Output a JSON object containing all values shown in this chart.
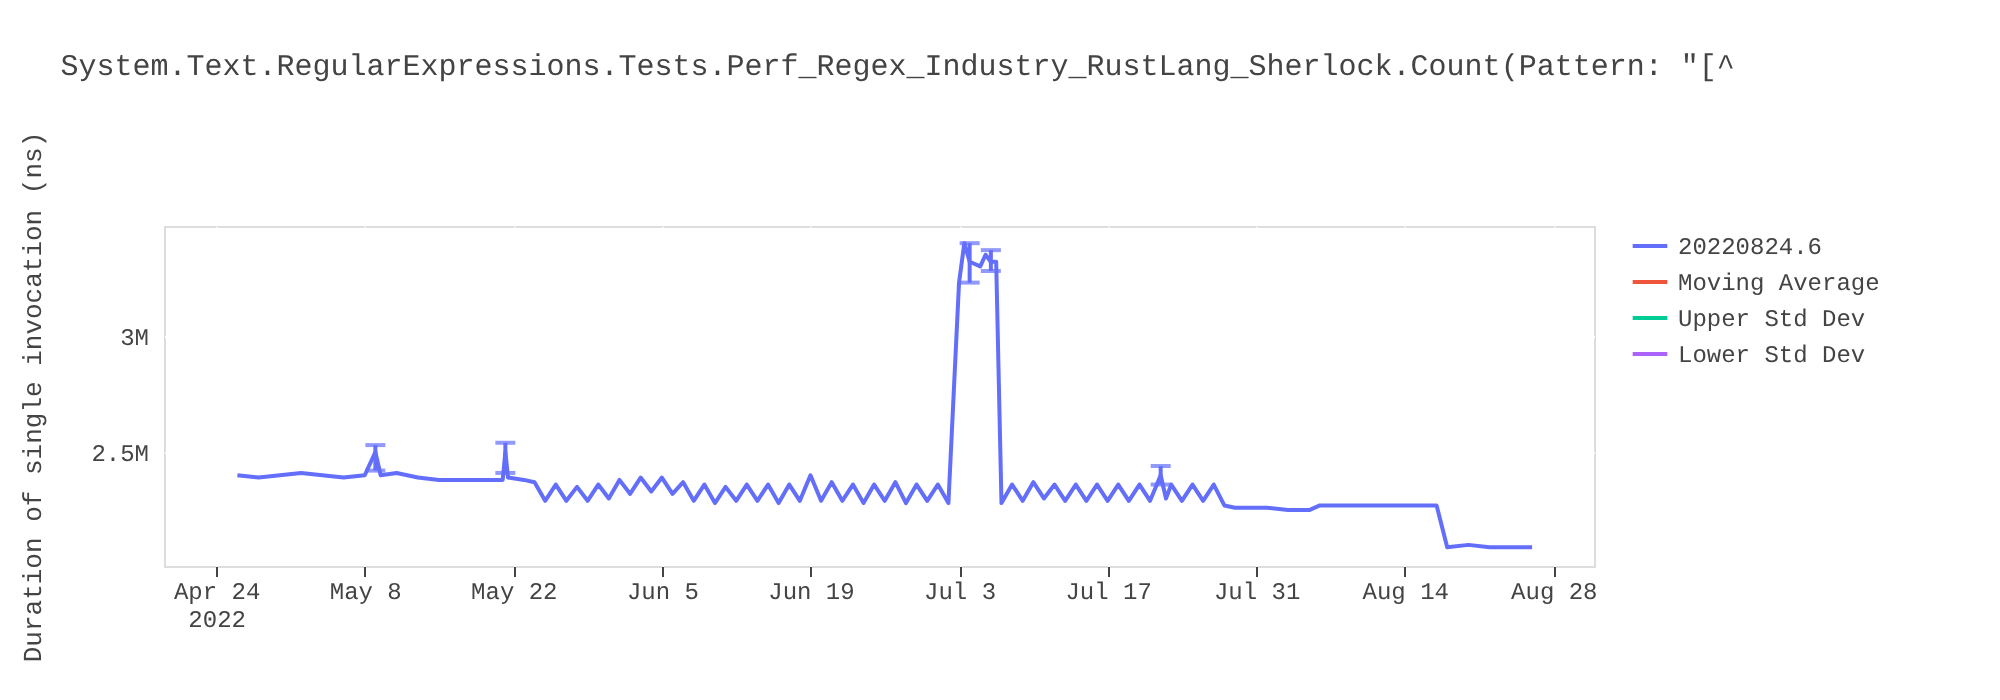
{
  "chart_data": {
    "type": "line",
    "title": "System.Text.RegularExpressions.Tests.Perf_Regex_Industry_RustLang_Sherlock.Count(Pattern: \"[^",
    "ylabel": "Duration of single invocation (ns)",
    "xlim": [
      "2022-04-19T02:00",
      "2022-08-31T20:00"
    ],
    "xticks": [
      {
        "value": "2022-04-24",
        "label": "Apr 24\n2022"
      },
      {
        "value": "2022-05-08",
        "label": "May 8"
      },
      {
        "value": "2022-05-22",
        "label": "May 22"
      },
      {
        "value": "2022-06-05",
        "label": "Jun 5"
      },
      {
        "value": "2022-06-19",
        "label": "Jun 19"
      },
      {
        "value": "2022-07-03",
        "label": "Jul 3"
      },
      {
        "value": "2022-07-17",
        "label": "Jul 17"
      },
      {
        "value": "2022-07-31",
        "label": "Jul 31"
      },
      {
        "value": "2022-08-14",
        "label": "Aug 14"
      },
      {
        "value": "2022-08-28",
        "label": "Aug 28"
      }
    ],
    "ylim": [
      2009000,
      3474000
    ],
    "yticks": [
      {
        "value": 2500000,
        "label": "2.5M"
      },
      {
        "value": 3000000,
        "label": "3M"
      }
    ],
    "grid": true,
    "legend": "top right",
    "marker": "none",
    "line_style": "solid",
    "series": [
      {
        "name": "20220824.6",
        "color": "#636efa",
        "x": [
          "2022-04-26",
          "2022-04-28",
          "2022-04-30",
          "2022-05-02",
          "2022-05-04",
          "2022-05-06",
          "2022-05-08",
          "2022-05-09",
          "2022-05-09T12:00",
          "2022-05-11",
          "2022-05-13",
          "2022-05-15",
          "2022-05-17",
          "2022-05-19",
          "2022-05-21",
          "2022-05-21T06:00",
          "2022-05-21T12:00",
          "2022-05-23",
          "2022-05-24",
          "2022-05-25",
          "2022-05-26",
          "2022-05-27",
          "2022-05-28",
          "2022-05-29",
          "2022-05-30",
          "2022-05-31",
          "2022-06-01",
          "2022-06-02",
          "2022-06-03",
          "2022-06-04",
          "2022-06-05",
          "2022-06-06",
          "2022-06-07",
          "2022-06-08",
          "2022-06-09",
          "2022-06-10",
          "2022-06-11",
          "2022-06-12",
          "2022-06-13",
          "2022-06-14",
          "2022-06-15",
          "2022-06-16",
          "2022-06-17",
          "2022-06-18",
          "2022-06-19",
          "2022-06-20",
          "2022-06-21",
          "2022-06-22",
          "2022-06-23",
          "2022-06-24",
          "2022-06-25",
          "2022-06-26",
          "2022-06-27",
          "2022-06-28",
          "2022-06-29",
          "2022-06-30",
          "2022-07-01",
          "2022-07-02",
          "2022-07-03",
          "2022-07-03T12:00",
          "2022-07-04",
          "2022-07-05",
          "2022-07-05T12:00",
          "2022-07-06",
          "2022-07-06T12:00",
          "2022-07-07",
          "2022-07-08",
          "2022-07-09",
          "2022-07-10",
          "2022-07-11",
          "2022-07-12",
          "2022-07-13",
          "2022-07-14",
          "2022-07-15",
          "2022-07-16",
          "2022-07-17",
          "2022-07-18",
          "2022-07-19",
          "2022-07-20",
          "2022-07-21",
          "2022-07-22",
          "2022-07-22T12:00",
          "2022-07-23",
          "2022-07-24",
          "2022-07-25",
          "2022-07-26",
          "2022-07-27",
          "2022-07-28",
          "2022-07-29",
          "2022-08-01",
          "2022-08-03",
          "2022-08-05",
          "2022-08-06",
          "2022-08-09",
          "2022-08-12",
          "2022-08-15",
          "2022-08-17",
          "2022-08-18",
          "2022-08-20",
          "2022-08-22",
          "2022-08-24",
          "2022-08-26"
        ],
        "values": [
          2400000,
          2390000,
          2400000,
          2410000,
          2400000,
          2390000,
          2400000,
          2500000,
          2400000,
          2410000,
          2390000,
          2380000,
          2380000,
          2380000,
          2380000,
          2500000,
          2390000,
          2380000,
          2370000,
          2290000,
          2360000,
          2290000,
          2350000,
          2290000,
          2360000,
          2300000,
          2380000,
          2320000,
          2390000,
          2330000,
          2390000,
          2320000,
          2370000,
          2290000,
          2360000,
          2280000,
          2350000,
          2290000,
          2360000,
          2290000,
          2360000,
          2280000,
          2360000,
          2290000,
          2400000,
          2290000,
          2370000,
          2290000,
          2360000,
          2280000,
          2360000,
          2290000,
          2370000,
          2280000,
          2360000,
          2290000,
          2360000,
          2280000,
          3230000,
          3400000,
          3320000,
          3300000,
          3350000,
          3320000,
          3320000,
          2280000,
          2360000,
          2290000,
          2370000,
          2300000,
          2360000,
          2290000,
          2360000,
          2290000,
          2360000,
          2290000,
          2360000,
          2290000,
          2360000,
          2290000,
          2400000,
          2300000,
          2360000,
          2290000,
          2360000,
          2290000,
          2360000,
          2270000,
          2260000,
          2260000,
          2250000,
          2250000,
          2270000,
          2270000,
          2270000,
          2270000,
          2270000,
          2090000,
          2100000,
          2090000,
          2090000,
          2090000
        ],
        "errors": [
          null,
          null,
          null,
          null,
          null,
          null,
          null,
          [
            2420000,
            2530000
          ],
          null,
          null,
          null,
          null,
          null,
          null,
          null,
          [
            2410000,
            2540000
          ],
          null,
          null,
          null,
          null,
          null,
          null,
          null,
          null,
          null,
          null,
          null,
          null,
          null,
          null,
          null,
          null,
          null,
          null,
          null,
          null,
          null,
          null,
          null,
          null,
          null,
          null,
          null,
          null,
          null,
          null,
          null,
          null,
          null,
          null,
          null,
          null,
          null,
          null,
          null,
          null,
          null,
          null,
          null,
          null,
          [
            3230000,
            3400000
          ],
          null,
          null,
          [
            3280000,
            3370000
          ],
          null,
          null,
          null,
          null,
          null,
          null,
          null,
          null,
          null,
          null,
          null,
          null,
          null,
          null,
          null,
          null,
          [
            2360000,
            2440000
          ],
          null,
          null,
          null,
          null,
          null,
          null,
          null,
          null,
          null,
          null,
          null,
          null,
          null,
          null,
          null,
          null,
          null,
          null,
          null,
          null,
          null
        ]
      },
      {
        "name": "Moving Average",
        "color": "#ef553b"
      },
      {
        "name": "Upper Std Dev",
        "color": "#00cc96"
      },
      {
        "name": "Lower Std Dev",
        "color": "#ab63fa"
      }
    ]
  }
}
